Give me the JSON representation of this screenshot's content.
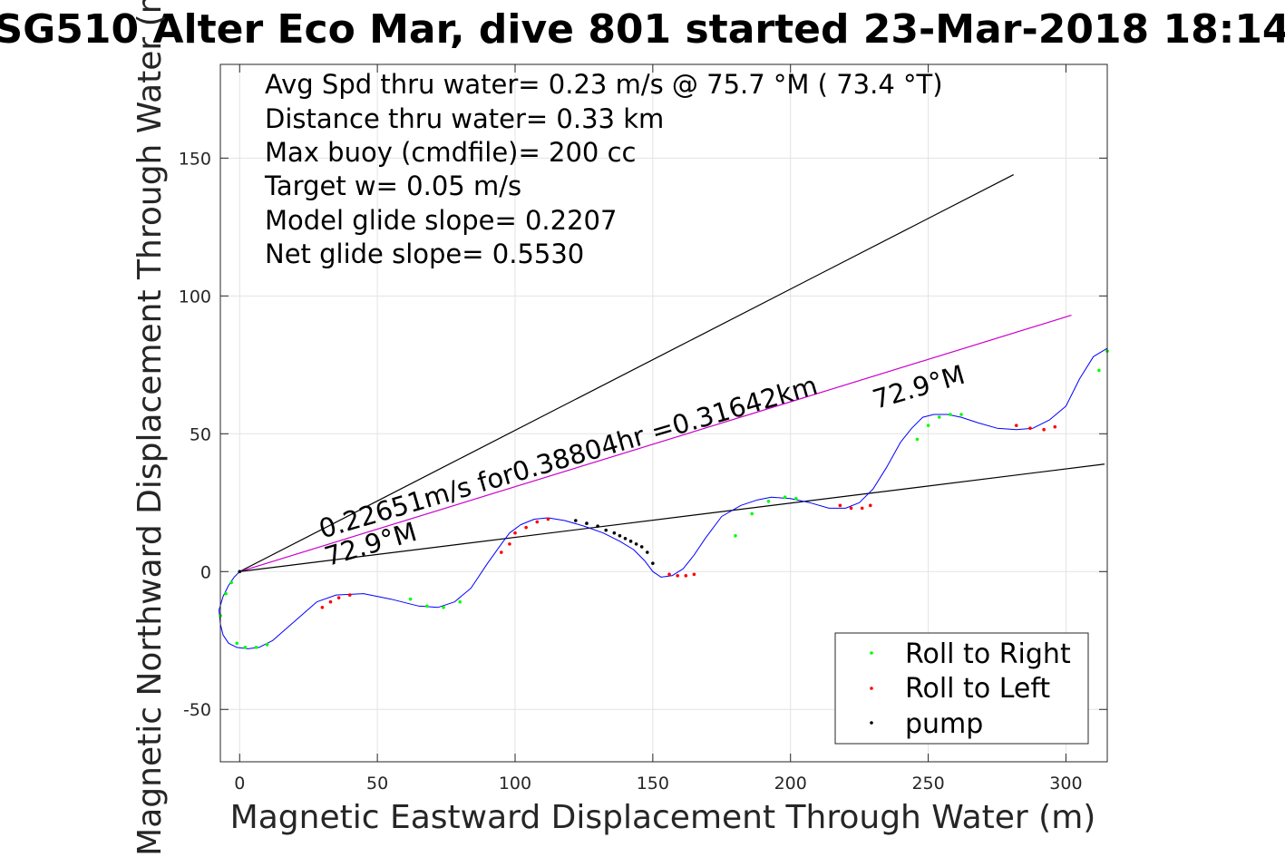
{
  "chart_data": {
    "type": "line",
    "title": "SG510 Alter Eco Mar, dive 801 started 23-Mar-2018 18:14",
    "xlabel": "Magnetic Eastward Displacement Through Water (m)",
    "ylabel": "Magnetic Northward Displacement Through Water (m)",
    "xlim": [
      -7,
      315
    ],
    "ylim": [
      -69,
      184
    ],
    "xticks": [
      0,
      50,
      100,
      150,
      200,
      250,
      300
    ],
    "yticks": [
      -50,
      0,
      50,
      100,
      150
    ],
    "grid": true,
    "info_lines": [
      "Avg Spd thru water=  0.23 m/s @  75.7 °M ( 73.4 °T)",
      "Distance thru water=  0.33 km",
      "Max buoy (cmdfile)= 200 cc",
      "Target w= 0.05 m/s",
      "Model glide slope= 0.2207",
      "Net glide slope= 0.5530"
    ],
    "annotations": [
      {
        "text": "0.22651m/s for0.38804hr =0.31642km",
        "x": 30,
        "y": 12,
        "angle_data_deg": 16.3
      },
      {
        "text": "72.9°M",
        "x": 32,
        "y": 2,
        "angle_data_deg": 16.3
      },
      {
        "text": "72.9°M",
        "x": 231,
        "y": 59,
        "angle_data_deg": 16.3
      }
    ],
    "lines": [
      {
        "name": "upper-bound",
        "color": "#000000",
        "x": [
          0,
          281
        ],
        "y": [
          0,
          144
        ]
      },
      {
        "name": "heading",
        "color": "#cc00cc",
        "x": [
          0,
          302
        ],
        "y": [
          0,
          93
        ]
      },
      {
        "name": "lower-bound",
        "color": "#000000",
        "x": [
          0,
          314
        ],
        "y": [
          0,
          39
        ]
      }
    ],
    "track": {
      "color": "#0000ff",
      "x": [
        0,
        -2,
        -4,
        -6,
        -7.5,
        -7,
        -6,
        -4,
        -1,
        3,
        7,
        12,
        20,
        28,
        35,
        45,
        55,
        65,
        72,
        78,
        84,
        90,
        95,
        98,
        102,
        107,
        112,
        118,
        125,
        132,
        138,
        143,
        147,
        150,
        153,
        157,
        161,
        165,
        169,
        175,
        182,
        188,
        193,
        200,
        207,
        214,
        220,
        225,
        230,
        235,
        240,
        244,
        248,
        252,
        257,
        262,
        268,
        275,
        282,
        288,
        294,
        300,
        305,
        310,
        315
      ],
      "y": [
        0,
        -2,
        -5,
        -9,
        -14,
        -19,
        -23,
        -26,
        -27.5,
        -28,
        -27.5,
        -25,
        -18,
        -11,
        -8.5,
        -8,
        -10,
        -12.5,
        -13,
        -11,
        -6,
        3,
        10,
        14,
        17,
        19,
        19.5,
        18.5,
        16.5,
        14,
        11,
        8,
        4,
        0,
        -2,
        -1.5,
        1,
        6,
        12,
        20,
        24,
        26,
        27,
        26.5,
        25,
        23,
        23,
        25,
        30,
        38,
        47,
        52,
        56,
        57,
        57,
        56,
        54,
        52,
        51.5,
        52,
        55,
        60,
        70,
        78,
        81
      ]
    },
    "legend": {
      "placement": "bottom-right",
      "items": [
        {
          "label": "Roll to Right",
          "color": "#00ff00"
        },
        {
          "label": "Roll to Left",
          "color": "#ff0000"
        },
        {
          "label": "pump",
          "color": "#000000"
        }
      ]
    },
    "markers": {
      "roll_right": {
        "color": "#00ff00",
        "x": [
          -7,
          -5,
          -3,
          -1,
          2,
          6,
          10,
          62,
          68,
          74,
          80,
          180,
          186,
          192,
          198,
          202,
          246,
          250,
          254,
          258,
          262,
          312,
          315
        ],
        "y": [
          -16,
          -8,
          -4,
          -26,
          -27.5,
          -27.5,
          -26.5,
          -10,
          -12.5,
          -13,
          -11,
          13,
          21,
          25.5,
          27,
          26.5,
          48,
          53,
          56,
          57,
          57,
          73,
          80
        ]
      },
      "roll_left": {
        "color": "#ff0000",
        "x": [
          30,
          33,
          36,
          40,
          95,
          98,
          100,
          104,
          108,
          112,
          156,
          159,
          162,
          165,
          218,
          222,
          226,
          229,
          282,
          287,
          292,
          296
        ],
        "y": [
          -13,
          -11,
          -9.5,
          -8.5,
          7,
          10,
          14,
          16,
          18,
          19,
          -1,
          -1.5,
          -1.5,
          -1,
          24,
          23,
          23,
          24,
          53,
          52,
          51.5,
          52.5
        ]
      },
      "pump": {
        "color": "#000000",
        "x": [
          0,
          122,
          126,
          130,
          133,
          136,
          138,
          140,
          142,
          144,
          146,
          148,
          150
        ],
        "y": [
          0,
          18.5,
          17.5,
          16.5,
          15,
          14,
          13,
          12,
          11,
          10,
          9,
          7,
          3
        ]
      }
    }
  }
}
